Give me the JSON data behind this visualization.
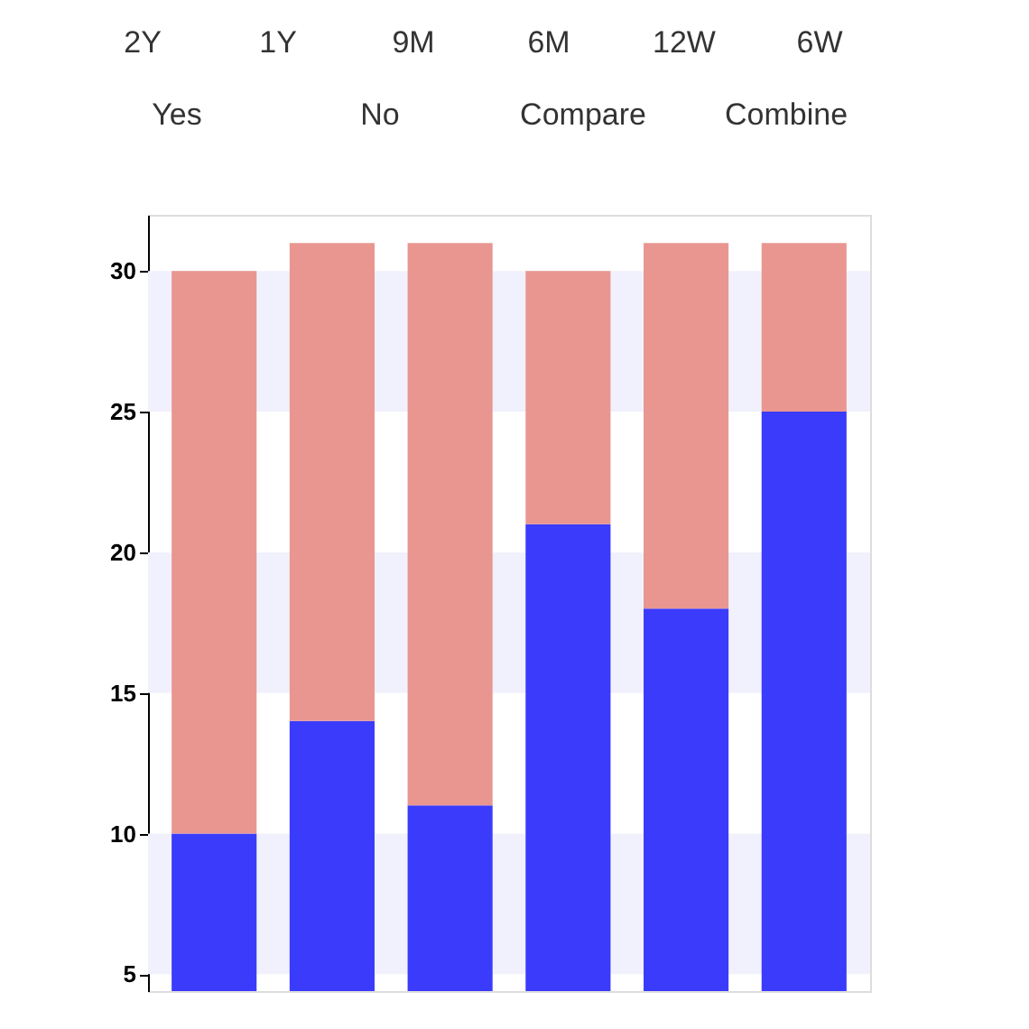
{
  "chart_data": {
    "type": "bar",
    "stacked": true,
    "categories": [
      null,
      null,
      null,
      null,
      null,
      null
    ],
    "series": [
      {
        "color": "#3b3bfb",
        "values": [
          10,
          14,
          11,
          21,
          18,
          25
        ]
      },
      {
        "color": "#e99691",
        "values": [
          20,
          17,
          20,
          9,
          13,
          6
        ]
      }
    ],
    "ylim": [
      4.4,
      32
    ],
    "yticks": [
      5,
      10,
      15,
      20,
      25,
      30
    ],
    "tick_labels": "y",
    "grid": false,
    "bands": [
      {
        "axis": "y",
        "from": 25,
        "to": 30,
        "color": "#f1f1fd"
      },
      {
        "axis": "y",
        "from": 15,
        "to": 20,
        "color": "#f1f1fd"
      },
      {
        "axis": "y",
        "from": 5,
        "to": 10,
        "color": "#f1f1fd"
      }
    ],
    "annotations": [
      "2Y",
      "1Y",
      "9M",
      "6M",
      "12W",
      "6W",
      "Yes",
      "No",
      "Compare",
      "Combine"
    ]
  }
}
